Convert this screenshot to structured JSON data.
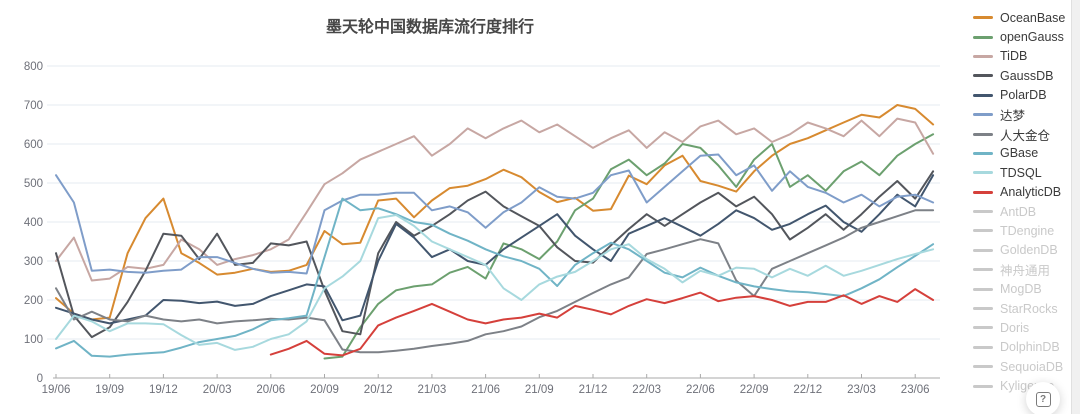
{
  "title": "墨天轮中国数据库流行度排行",
  "help_button": {
    "icon": "?"
  },
  "chart_data": {
    "type": "line",
    "title": "墨天轮中国数据库流行度排行",
    "xlabel": "",
    "ylabel": "",
    "ylim": [
      0,
      800
    ],
    "y_tick_step": 100,
    "grid": true,
    "legend_position": "right",
    "months_total": 50,
    "x_first_month": "19/06",
    "x_last_month": "23/07",
    "x_tick_labels": [
      "19/06",
      "19/09",
      "19/12",
      "20/03",
      "20/06",
      "20/09",
      "20/12",
      "21/03",
      "21/06",
      "21/09",
      "21/12",
      "22/03",
      "22/06",
      "22/09",
      "22/12",
      "23/03",
      "23/06"
    ],
    "x_tick_every_n_months": 3,
    "series": [
      {
        "name": "OceanBase",
        "color": "#D78A30",
        "start_index": 0,
        "values": [
          205,
          165,
          150,
          155,
          320,
          410,
          460,
          320,
          295,
          265,
          270,
          280,
          272,
          275,
          290,
          377,
          343,
          347,
          455,
          460,
          412,
          455,
          487,
          493,
          510,
          534,
          515,
          477,
          451,
          462,
          429,
          433,
          519,
          497,
          545,
          570,
          505,
          493,
          478,
          530,
          570,
          600,
          615,
          635,
          655,
          675,
          668,
          700,
          690,
          650
        ]
      },
      {
        "name": "openGauss",
        "color": "#6CA06F",
        "start_index": 15,
        "values": [
          50,
          55,
          130,
          190,
          225,
          235,
          240,
          270,
          285,
          255,
          345,
          330,
          305,
          350,
          430,
          460,
          535,
          560,
          520,
          550,
          600,
          590,
          545,
          490,
          560,
          600,
          490,
          520,
          480,
          530,
          555,
          520,
          570,
          600,
          625
        ]
      },
      {
        "name": "TiDB",
        "color": "#C7A7A3",
        "start_index": 0,
        "values": [
          300,
          360,
          250,
          255,
          285,
          280,
          290,
          355,
          330,
          290,
          305,
          315,
          330,
          355,
          425,
          497,
          525,
          560,
          580,
          600,
          620,
          570,
          600,
          640,
          615,
          640,
          660,
          630,
          650,
          620,
          590,
          615,
          635,
          590,
          630,
          605,
          645,
          660,
          625,
          640,
          605,
          625,
          655,
          640,
          620,
          660,
          620,
          665,
          655,
          575
        ]
      },
      {
        "name": "GaussDB",
        "color": "#53565C",
        "start_index": 0,
        "values": [
          320,
          160,
          105,
          130,
          195,
          275,
          370,
          365,
          305,
          370,
          290,
          295,
          345,
          340,
          350,
          225,
          120,
          112,
          320,
          400,
          365,
          390,
          420,
          455,
          478,
          440,
          415,
          390,
          335,
          300,
          296,
          340,
          382,
          420,
          390,
          420,
          450,
          475,
          440,
          465,
          420,
          355,
          385,
          420,
          380,
          420,
          465,
          505,
          460,
          530
        ]
      },
      {
        "name": "PolarDB",
        "color": "#42566E",
        "start_index": 0,
        "values": [
          180,
          165,
          150,
          140,
          150,
          160,
          200,
          198,
          192,
          196,
          185,
          190,
          210,
          225,
          240,
          235,
          148,
          160,
          300,
          395,
          360,
          310,
          330,
          300,
          290,
          330,
          360,
          390,
          420,
          365,
          330,
          300,
          370,
          390,
          410,
          388,
          365,
          395,
          430,
          410,
          380,
          395,
          420,
          442,
          400,
          375,
          420,
          470,
          440,
          520
        ]
      },
      {
        "name": "达梦",
        "color": "#7F9DC9",
        "start_index": 0,
        "values": [
          520,
          450,
          275,
          278,
          272,
          270,
          275,
          278,
          310,
          310,
          295,
          280,
          270,
          272,
          268,
          430,
          455,
          470,
          470,
          475,
          475,
          430,
          440,
          425,
          385,
          425,
          450,
          489,
          465,
          460,
          475,
          520,
          532,
          450,
          490,
          530,
          570,
          573,
          520,
          545,
          480,
          530,
          490,
          475,
          450,
          470,
          440,
          465,
          470,
          450
        ]
      },
      {
        "name": "人大金仓",
        "color": "#7D8187",
        "start_index": 0,
        "values": [
          230,
          150,
          170,
          150,
          145,
          160,
          150,
          145,
          150,
          140,
          145,
          148,
          152,
          150,
          155,
          148,
          73,
          66,
          66,
          70,
          75,
          82,
          88,
          95,
          112,
          120,
          132,
          156,
          172,
          195,
          218,
          240,
          258,
          318,
          330,
          343,
          356,
          345,
          250,
          210,
          280,
          300,
          320,
          340,
          360,
          385,
          400,
          415,
          430,
          430
        ]
      },
      {
        "name": "GBase",
        "color": "#70B4C6",
        "start_index": 0,
        "values": [
          76,
          95,
          57,
          55,
          60,
          63,
          66,
          78,
          92,
          100,
          108,
          125,
          148,
          153,
          160,
          310,
          460,
          430,
          435,
          420,
          400,
          393,
          370,
          352,
          330,
          312,
          300,
          280,
          236,
          290,
          320,
          347,
          330,
          300,
          270,
          258,
          283,
          262,
          245,
          235,
          228,
          222,
          220,
          215,
          210,
          230,
          253,
          284,
          313,
          343
        ]
      },
      {
        "name": "TDSQL",
        "color": "#A7D9DE",
        "start_index": 0,
        "values": [
          100,
          160,
          145,
          120,
          140,
          140,
          138,
          110,
          85,
          90,
          72,
          80,
          100,
          112,
          145,
          230,
          260,
          300,
          410,
          418,
          390,
          350,
          330,
          310,
          290,
          230,
          200,
          240,
          260,
          272,
          300,
          330,
          343,
          305,
          280,
          245,
          275,
          262,
          283,
          280,
          258,
          280,
          262,
          288,
          262,
          275,
          290,
          305,
          318,
          330
        ]
      },
      {
        "name": "AnalyticDB",
        "color": "#D5403B",
        "start_index": 12,
        "values": [
          60,
          75,
          95,
          62,
          58,
          75,
          135,
          155,
          172,
          190,
          170,
          150,
          140,
          150,
          155,
          165,
          155,
          185,
          175,
          163,
          185,
          202,
          192,
          205,
          219,
          197,
          206,
          210,
          200,
          185,
          195,
          195,
          212,
          190,
          210,
          195,
          228,
          200
        ]
      }
    ],
    "disabled_series": [
      "AntDB",
      "TDengine",
      "GoldenDB",
      "神舟通用",
      "MogDB",
      "StarRocks",
      "Doris",
      "DolphinDB",
      "SequoiaDB",
      "Kyligence"
    ],
    "disabled_color": "#c9c9c9",
    "axis_label_color": "#6E7079",
    "grid_line_color": "#e6ebf2",
    "axis_line_color": "#aaaaaa"
  }
}
